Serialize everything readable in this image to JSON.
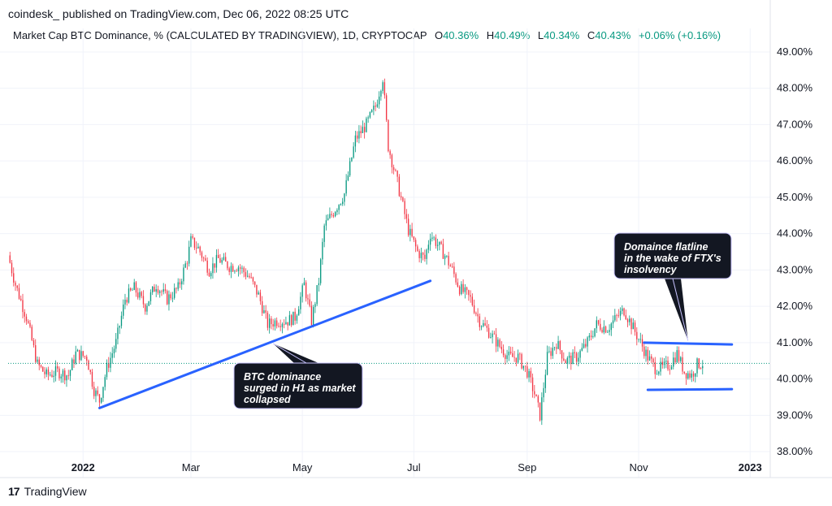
{
  "header": {
    "published": "coindesk_ published on TradingView.com, Dec 06, 2022 08:25 UTC"
  },
  "legend": {
    "symbol": "Market Cap BTC Dominance, % (CALCULATED BY TRADINGVIEW), 1D, CRYPTOCAP",
    "o_label": "O",
    "o_value": "40.36%",
    "h_label": "H",
    "h_value": "40.49%",
    "l_label": "L",
    "l_value": "40.34%",
    "c_label": "C",
    "c_value": "40.43%",
    "change": "+0.06% (+0.16%)"
  },
  "footer": {
    "brand": "TradingView",
    "logo_glyph": "17"
  },
  "colors": {
    "up": "#089981",
    "down": "#f23645",
    "trendline": "#2962ff",
    "last_price_line": "#089981",
    "callout_bg": "#131722",
    "callout_text": "#ffffff",
    "grid": "#f0f3fa"
  },
  "chart_data": {
    "type": "candlestick",
    "x_tick_labels": [
      "2022",
      "Mar",
      "May",
      "Jul",
      "Sep",
      "Nov",
      "2023"
    ],
    "y_tick_labels": [
      "38.00%",
      "39.00%",
      "40.00%",
      "41.00%",
      "42.00%",
      "43.00%",
      "44.00%",
      "45.00%",
      "46.00%",
      "47.00%",
      "48.00%",
      "49.00%"
    ],
    "ylim": [
      37.8,
      49.2
    ],
    "xlim": [
      "2021-11-21",
      "2023-01-12"
    ],
    "grid": true,
    "current_value": 40.43,
    "close_path": [
      [
        "2021-11-21",
        43.4
      ],
      [
        "2021-11-25",
        42.6
      ],
      [
        "2021-12-01",
        41.7
      ],
      [
        "2021-12-07",
        40.4
      ],
      [
        "2021-12-12",
        40.1
      ],
      [
        "2021-12-18",
        40.2
      ],
      [
        "2021-12-24",
        40.1
      ],
      [
        "2021-12-28",
        40.7
      ],
      [
        "2022-01-03",
        40.6
      ],
      [
        "2022-01-07",
        39.7
      ],
      [
        "2022-01-10",
        39.4
      ],
      [
        "2022-01-14",
        40.3
      ],
      [
        "2022-01-19",
        41.0
      ],
      [
        "2022-01-24",
        42.2
      ],
      [
        "2022-01-29",
        42.5
      ],
      [
        "2022-02-04",
        42.0
      ],
      [
        "2022-02-10",
        42.6
      ],
      [
        "2022-02-16",
        42.2
      ],
      [
        "2022-02-22",
        42.5
      ],
      [
        "2022-02-27",
        43.3
      ],
      [
        "2022-03-01",
        43.8
      ],
      [
        "2022-03-05",
        43.6
      ],
      [
        "2022-03-11",
        43.0
      ],
      [
        "2022-03-16",
        43.3
      ],
      [
        "2022-03-22",
        43.1
      ],
      [
        "2022-03-27",
        43.1
      ],
      [
        "2022-04-02",
        42.8
      ],
      [
        "2022-04-07",
        42.3
      ],
      [
        "2022-04-12",
        41.5
      ],
      [
        "2022-04-17",
        41.6
      ],
      [
        "2022-04-23",
        41.6
      ],
      [
        "2022-04-27",
        41.7
      ],
      [
        "2022-05-02",
        42.6
      ],
      [
        "2022-05-06",
        41.6
      ],
      [
        "2022-05-10",
        42.7
      ],
      [
        "2022-05-13",
        44.2
      ],
      [
        "2022-05-18",
        44.6
      ],
      [
        "2022-05-24",
        45.1
      ],
      [
        "2022-05-30",
        46.6
      ],
      [
        "2022-06-05",
        47.0
      ],
      [
        "2022-06-10",
        47.5
      ],
      [
        "2022-06-14",
        48.3
      ],
      [
        "2022-06-17",
        46.4
      ],
      [
        "2022-06-22",
        45.4
      ],
      [
        "2022-06-28",
        44.1
      ],
      [
        "2022-07-03",
        43.5
      ],
      [
        "2022-07-07",
        43.3
      ],
      [
        "2022-07-10",
        44.0
      ],
      [
        "2022-07-14",
        43.7
      ],
      [
        "2022-07-18",
        43.4
      ],
      [
        "2022-07-22",
        43.0
      ],
      [
        "2022-07-26",
        42.5
      ],
      [
        "2022-08-01",
        42.2
      ],
      [
        "2022-08-06",
        41.6
      ],
      [
        "2022-08-11",
        41.3
      ],
      [
        "2022-08-17",
        40.9
      ],
      [
        "2022-08-22",
        40.6
      ],
      [
        "2022-08-27",
        40.6
      ],
      [
        "2022-09-01",
        40.2
      ],
      [
        "2022-09-05",
        39.6
      ],
      [
        "2022-09-08",
        39.0
      ],
      [
        "2022-09-12",
        40.6
      ],
      [
        "2022-09-17",
        41.0
      ],
      [
        "2022-09-22",
        40.5
      ],
      [
        "2022-09-28",
        40.6
      ],
      [
        "2022-10-04",
        41.0
      ],
      [
        "2022-10-09",
        41.5
      ],
      [
        "2022-10-15",
        41.4
      ],
      [
        "2022-10-20",
        41.7
      ],
      [
        "2022-10-24",
        41.9
      ],
      [
        "2022-10-28",
        41.5
      ],
      [
        "2022-11-02",
        41.0
      ],
      [
        "2022-11-06",
        40.6
      ],
      [
        "2022-11-10",
        40.3
      ],
      [
        "2022-11-14",
        40.3
      ],
      [
        "2022-11-18",
        40.4
      ],
      [
        "2022-11-22",
        40.7
      ],
      [
        "2022-11-26",
        40.2
      ],
      [
        "2022-11-30",
        40.1
      ],
      [
        "2022-12-03",
        40.4
      ],
      [
        "2022-12-06",
        40.43
      ]
    ],
    "annotations": [
      {
        "text_lines": [
          "BTC dominance",
          "surged in H1 as market",
          "collapsed"
        ],
        "trendline": [
          [
            "2022-01-10",
            39.2
          ],
          [
            "2022-07-10",
            42.7
          ]
        ]
      },
      {
        "text_lines": [
          "Domaince flatline",
          "in the wake of FTX's",
          "insolvency"
        ],
        "channel_top": [
          [
            "2022-11-04",
            41.0
          ],
          [
            "2022-12-22",
            40.95
          ]
        ],
        "channel_bottom": [
          [
            "2022-11-06",
            39.7
          ],
          [
            "2022-12-22",
            39.72
          ]
        ]
      }
    ]
  }
}
